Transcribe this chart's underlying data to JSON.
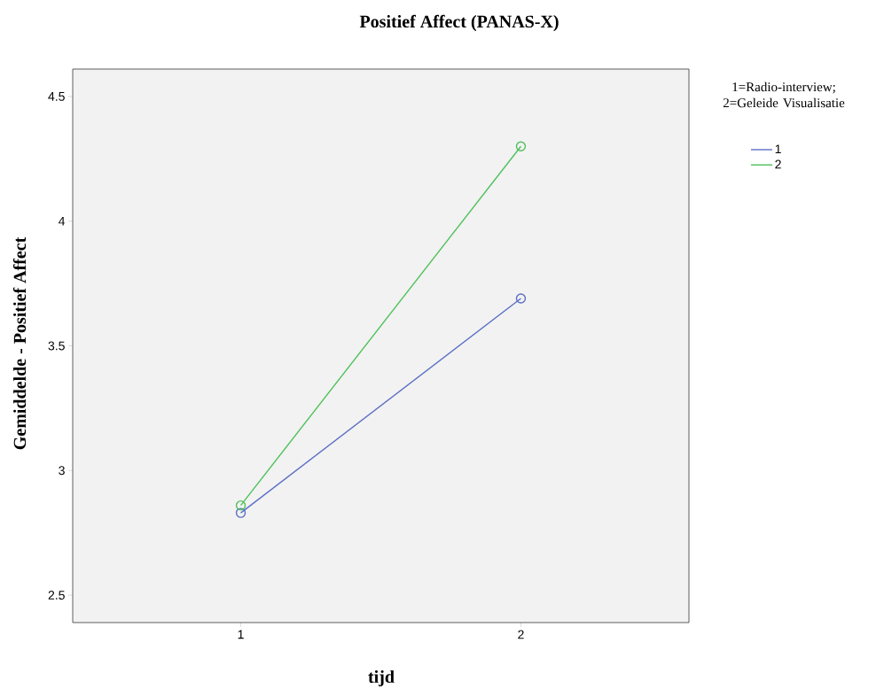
{
  "chart_data": {
    "type": "line",
    "title": "Positief Affect (PANAS-X)",
    "xlabel": "tijd",
    "ylabel": "Gemiddelde - Positief Affect",
    "legend_title": "1=Radio-interview; 2=Geleide Visualisatie",
    "categories": [
      "1",
      "2"
    ],
    "series": [
      {
        "name": "1",
        "color": "#5b6fc5",
        "values": [
          2.83,
          3.69
        ]
      },
      {
        "name": "2",
        "color": "#4fc05a",
        "values": [
          2.86,
          4.3
        ]
      }
    ],
    "ylim": [
      2.39,
      4.61
    ],
    "yticks": [
      2.5,
      3,
      3.5,
      4,
      4.5
    ],
    "grid": false,
    "legend": "top right",
    "marker": "circle",
    "line_style": "solid"
  }
}
